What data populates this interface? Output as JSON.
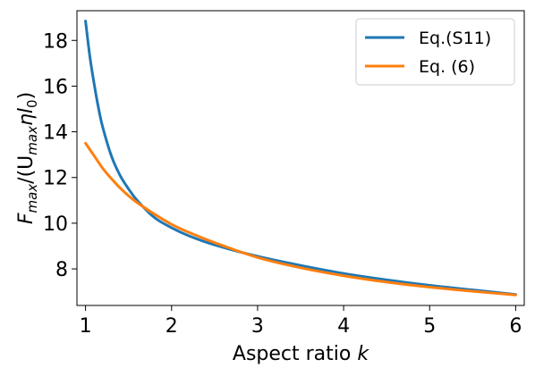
{
  "chart_data": {
    "type": "line",
    "title": "",
    "xlabel": "Aspect ratio ",
    "xlabel_var": "k",
    "ylabel": {
      "F": "F",
      "F_sub": "max",
      "open": "/(U",
      "U_sub": "max",
      "eta": "η",
      "l": "l",
      "l_sub": "0",
      "close": ")"
    },
    "xlim": [
      0.9,
      6.1
    ],
    "ylim": [
      6.4,
      19.3
    ],
    "xticks": [
      1,
      2,
      3,
      4,
      5,
      6
    ],
    "yticks": [
      8,
      10,
      12,
      14,
      16,
      18
    ],
    "grid": false,
    "legend_position": "top-right",
    "series": [
      {
        "name": "Eq.(S11)",
        "color": "#1f77b4",
        "x": [
          1.0,
          1.05,
          1.1,
          1.15,
          1.2,
          1.3,
          1.4,
          1.5,
          1.6,
          1.8,
          2.0,
          2.2,
          2.5,
          3.0,
          3.5,
          4.0,
          4.5,
          5.0,
          5.5,
          6.0
        ],
        "y": [
          18.85,
          17.3,
          16.1,
          15.05,
          14.2,
          12.95,
          12.1,
          11.5,
          11.0,
          10.25,
          9.8,
          9.45,
          9.05,
          8.55,
          8.15,
          7.8,
          7.52,
          7.28,
          7.08,
          6.88
        ]
      },
      {
        "name": "Eq. (6)",
        "color": "#ff7f0e",
        "x": [
          1.0,
          1.1,
          1.2,
          1.3,
          1.4,
          1.5,
          1.6,
          1.8,
          2.0,
          2.2,
          2.5,
          3.0,
          3.5,
          4.0,
          4.5,
          5.0,
          5.5,
          6.0
        ],
        "y": [
          13.5,
          12.95,
          12.4,
          11.95,
          11.55,
          11.2,
          10.9,
          10.4,
          9.95,
          9.6,
          9.15,
          8.5,
          8.05,
          7.7,
          7.42,
          7.2,
          7.02,
          6.86
        ]
      }
    ]
  }
}
